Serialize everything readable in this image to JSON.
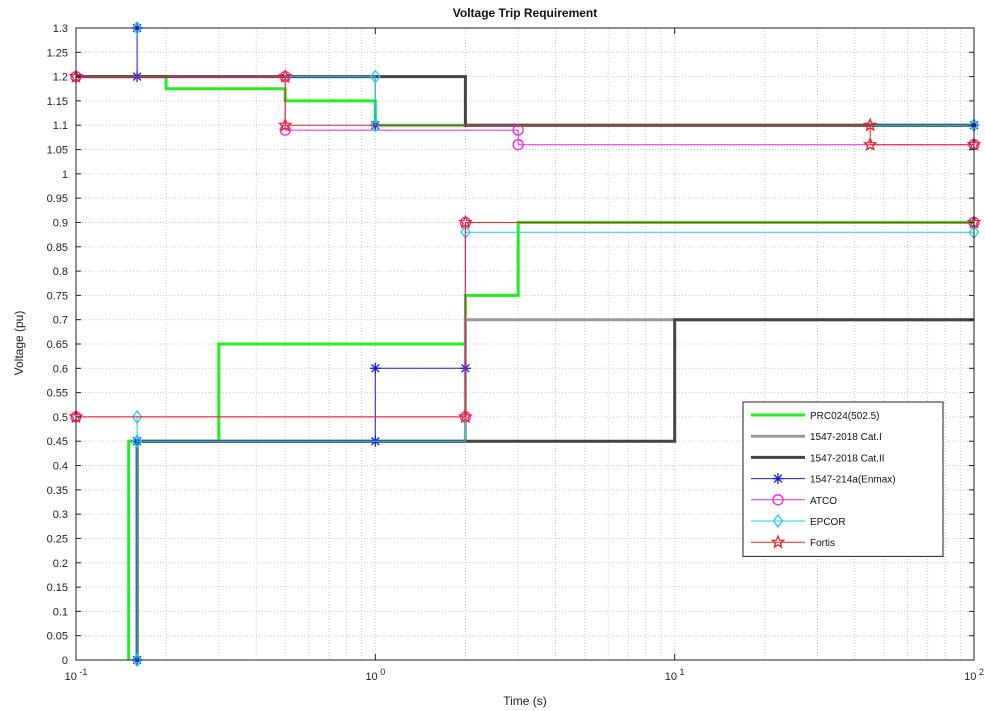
{
  "chart_data": {
    "type": "line",
    "title": "Voltage Trip Requirement",
    "xlabel": "Time (s)",
    "ylabel": "Voltage (pu)",
    "x_scale": "log",
    "xlim": [
      0.1,
      100
    ],
    "ylim": [
      0,
      1.3
    ],
    "grid": true,
    "legend_position": "right-middle",
    "x_ticks": [
      {
        "value": 0.1,
        "base": "10",
        "exp": "-1"
      },
      {
        "value": 1,
        "base": "10",
        "exp": "0"
      },
      {
        "value": 10,
        "base": "10",
        "exp": "1"
      },
      {
        "value": 100,
        "base": "10",
        "exp": "2"
      }
    ],
    "y_ticks": [
      {
        "value": 0,
        "label": "0"
      },
      {
        "value": 0.05,
        "label": "0.05"
      },
      {
        "value": 0.1,
        "label": "0.1"
      },
      {
        "value": 0.15,
        "label": "0.15"
      },
      {
        "value": 0.2,
        "label": "0.2"
      },
      {
        "value": 0.25,
        "label": "0.25"
      },
      {
        "value": 0.3,
        "label": "0.3"
      },
      {
        "value": 0.35,
        "label": "0.35"
      },
      {
        "value": 0.4,
        "label": "0.4"
      },
      {
        "value": 0.45,
        "label": "0.45"
      },
      {
        "value": 0.5,
        "label": "0.5"
      },
      {
        "value": 0.55,
        "label": "0.55"
      },
      {
        "value": 0.6,
        "label": "0.6"
      },
      {
        "value": 0.65,
        "label": "0.65"
      },
      {
        "value": 0.7,
        "label": "0.7"
      },
      {
        "value": 0.75,
        "label": "0.75"
      },
      {
        "value": 0.8,
        "label": "0.8"
      },
      {
        "value": 0.85,
        "label": "0.85"
      },
      {
        "value": 0.9,
        "label": "0.9"
      },
      {
        "value": 0.95,
        "label": "0.95"
      },
      {
        "value": 1,
        "label": "1"
      },
      {
        "value": 1.05,
        "label": "1.05"
      },
      {
        "value": 1.1,
        "label": "1.1"
      },
      {
        "value": 1.15,
        "label": "1.15"
      },
      {
        "value": 1.2,
        "label": "1.2"
      },
      {
        "value": 1.25,
        "label": "1.25"
      },
      {
        "value": 1.3,
        "label": "1.3"
      }
    ],
    "series": [
      {
        "name": "PRC024(502.5)",
        "color": "#22ee22",
        "width": 3,
        "marker": "none",
        "lines": [
          [
            [
              0.1,
              1.2
            ],
            [
              0.2,
              1.2
            ],
            [
              0.2,
              1.175
            ],
            [
              0.5,
              1.175
            ],
            [
              0.5,
              1.15
            ],
            [
              1,
              1.15
            ],
            [
              1,
              1.1
            ],
            [
              100,
              1.1
            ]
          ],
          [
            [
              0.15,
              0
            ],
            [
              0.15,
              0.45
            ],
            [
              0.3,
              0.45
            ],
            [
              0.3,
              0.65
            ],
            [
              2,
              0.65
            ],
            [
              2,
              0.75
            ],
            [
              3,
              0.75
            ],
            [
              3,
              0.9
            ],
            [
              100,
              0.9
            ]
          ]
        ]
      },
      {
        "name": "1547-2018 Cat.I",
        "color": "#999999",
        "width": 3,
        "marker": "none",
        "lines": [
          [
            [
              0.16,
              0.45
            ],
            [
              2,
              0.45
            ],
            [
              2,
              0.7
            ],
            [
              100,
              0.7
            ]
          ]
        ]
      },
      {
        "name": "1547-2018 Cat.II",
        "color": "#444444",
        "width": 3,
        "marker": "none",
        "lines": [
          [
            [
              0.1,
              1.2
            ],
            [
              2,
              1.2
            ],
            [
              2,
              1.1
            ],
            [
              100,
              1.1
            ]
          ],
          [
            [
              0.16,
              0
            ],
            [
              0.16,
              0.45
            ],
            [
              10,
              0.45
            ],
            [
              10,
              0.7
            ],
            [
              100,
              0.7
            ]
          ]
        ]
      },
      {
        "name": "1547-214a(Enmax)",
        "color": "#1a1ae6",
        "width": 1,
        "marker": "asterisk",
        "lines": [
          [
            [
              0.16,
              0
            ],
            [
              0.16,
              0.45
            ],
            [
              1,
              0.45
            ],
            [
              1,
              0.6
            ],
            [
              2,
              0.6
            ],
            [
              2,
              0.9
            ]
          ],
          [
            [
              0.1,
              1.2
            ],
            [
              0.16,
              1.2
            ],
            [
              0.16,
              1.3
            ],
            [
              0.16,
              1.2
            ],
            [
              1,
              1.2
            ],
            [
              1,
              1.1
            ],
            [
              100,
              1.1
            ]
          ]
        ],
        "markers": [
          [
            0.16,
            0
          ],
          [
            0.16,
            0.45
          ],
          [
            1,
            0.45
          ],
          [
            1,
            0.6
          ],
          [
            2,
            0.6
          ],
          [
            0.16,
            1.2
          ],
          [
            0.16,
            1.3
          ],
          [
            1,
            1.1
          ],
          [
            100,
            1.1
          ]
        ]
      },
      {
        "name": "ATCO",
        "color": "#ee22ee",
        "width": 1,
        "marker": "circle",
        "lines": [
          [
            [
              0.1,
              1.2
            ],
            [
              0.5,
              1.2
            ],
            [
              0.5,
              1.09
            ],
            [
              3,
              1.09
            ],
            [
              3,
              1.06
            ],
            [
              100,
              1.06
            ]
          ],
          [
            [
              0.1,
              0.5
            ],
            [
              2,
              0.5
            ],
            [
              2,
              0.9
            ],
            [
              100,
              0.9
            ]
          ]
        ],
        "markers": [
          [
            0.1,
            1.2
          ],
          [
            0.5,
            1.2
          ],
          [
            0.5,
            1.09
          ],
          [
            3,
            1.09
          ],
          [
            3,
            1.06
          ],
          [
            100,
            1.06
          ],
          [
            0.1,
            0.5
          ],
          [
            2,
            0.5
          ],
          [
            2,
            0.9
          ],
          [
            100,
            0.9
          ]
        ]
      },
      {
        "name": "EPCOR",
        "color": "#22ccee",
        "width": 1,
        "marker": "diamond",
        "lines": [
          [
            [
              0.1,
              1.2
            ],
            [
              1,
              1.2
            ],
            [
              1,
              1.1
            ],
            [
              100,
              1.1
            ]
          ],
          [
            [
              0.16,
              0
            ],
            [
              0.16,
              0.5
            ],
            [
              0.16,
              0.45
            ],
            [
              2,
              0.45
            ],
            [
              2,
              0.88
            ],
            [
              100,
              0.88
            ]
          ]
        ],
        "markers": [
          [
            0.16,
            0
          ],
          [
            0.16,
            0.5
          ],
          [
            0.16,
            0.45
          ],
          [
            1,
            1.2
          ],
          [
            1,
            1.1
          ],
          [
            2,
            0.88
          ],
          [
            100,
            0.88
          ],
          [
            100,
            1.1
          ],
          [
            0.16,
            1.3
          ]
        ]
      },
      {
        "name": "Fortis",
        "color": "#ee2222",
        "width": 1,
        "marker": "star",
        "lines": [
          [
            [
              0.1,
              1.2
            ],
            [
              0.5,
              1.2
            ],
            [
              0.5,
              1.1
            ],
            [
              45,
              1.1
            ],
            [
              45,
              1.06
            ],
            [
              100,
              1.06
            ]
          ],
          [
            [
              0.1,
              0.5
            ],
            [
              2,
              0.5
            ],
            [
              2,
              0.9
            ],
            [
              100,
              0.9
            ]
          ]
        ],
        "markers": [
          [
            0.1,
            1.2
          ],
          [
            0.5,
            1.2
          ],
          [
            0.5,
            1.1
          ],
          [
            45,
            1.1
          ],
          [
            45,
            1.06
          ],
          [
            100,
            1.06
          ],
          [
            0.1,
            0.5
          ],
          [
            2,
            0.5
          ],
          [
            2,
            0.9
          ],
          [
            100,
            0.9
          ]
        ]
      }
    ]
  }
}
